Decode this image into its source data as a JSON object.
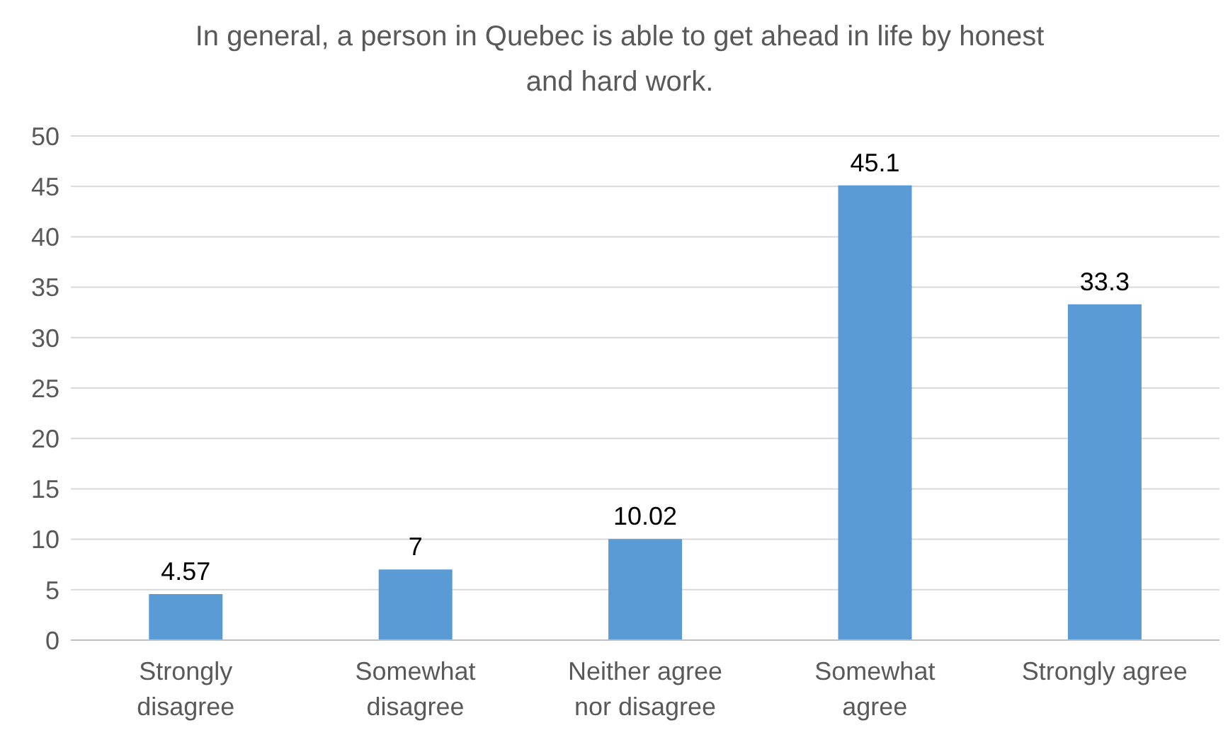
{
  "chart_data": {
    "type": "bar",
    "title": "In general, a person in Quebec is able to get ahead in life by honest and hard work.",
    "categories": [
      "Strongly disagree",
      "Somewhat disagree",
      "Neither agree nor disagree",
      "Somewhat agree",
      "Strongly agree"
    ],
    "values": [
      4.57,
      7,
      10.02,
      45.1,
      33.3
    ],
    "color": "#5b9bd5",
    "ylim": [
      0,
      50
    ],
    "yticks": [
      0,
      5,
      10,
      15,
      20,
      25,
      30,
      35,
      40,
      45,
      50
    ],
    "grid": "y",
    "data_labels": true
  }
}
